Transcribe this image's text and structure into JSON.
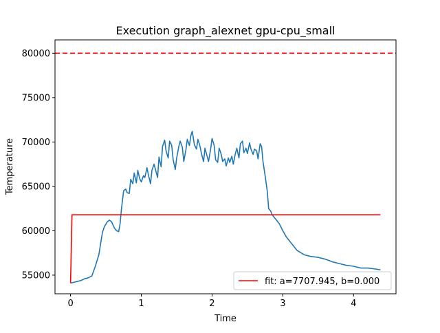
{
  "chart_data": {
    "type": "line",
    "title": "Execution graph_alexnet gpu-cpu_small",
    "xlabel": "Time",
    "ylabel": "Temperature",
    "xlim": [
      -0.22,
      4.6
    ],
    "ylim": [
      52900,
      81500
    ],
    "xticks": [
      0,
      1,
      2,
      3,
      4
    ],
    "yticks": [
      55000,
      60000,
      65000,
      70000,
      75000,
      80000
    ],
    "grid": false,
    "legend_position": "lower-right",
    "reference_line": {
      "y": 80000,
      "color": "#ff0000",
      "style": "dashed"
    },
    "series": [
      {
        "color": "#1f77b4",
        "x": [
          0.0,
          0.05,
          0.1,
          0.15,
          0.2,
          0.25,
          0.3,
          0.35,
          0.4,
          0.45,
          0.48,
          0.52,
          0.55,
          0.58,
          0.62,
          0.65,
          0.68,
          0.7,
          0.72,
          0.75,
          0.78,
          0.8,
          0.83,
          0.85,
          0.88,
          0.9,
          0.93,
          0.95,
          0.98,
          1.0,
          1.03,
          1.05,
          1.08,
          1.1,
          1.13,
          1.15,
          1.18,
          1.2,
          1.23,
          1.25,
          1.28,
          1.3,
          1.33,
          1.35,
          1.38,
          1.4,
          1.43,
          1.45,
          1.48,
          1.5,
          1.53,
          1.55,
          1.58,
          1.6,
          1.63,
          1.65,
          1.68,
          1.7,
          1.72,
          1.75,
          1.78,
          1.8,
          1.83,
          1.85,
          1.88,
          1.9,
          1.93,
          1.95,
          1.98,
          2.0,
          2.03,
          2.05,
          2.08,
          2.1,
          2.13,
          2.15,
          2.18,
          2.2,
          2.23,
          2.25,
          2.28,
          2.3,
          2.33,
          2.35,
          2.38,
          2.4,
          2.43,
          2.45,
          2.48,
          2.5,
          2.53,
          2.55,
          2.58,
          2.6,
          2.63,
          2.65,
          2.68,
          2.7,
          2.72,
          2.75,
          2.78,
          2.8,
          2.83,
          2.85,
          2.9,
          2.95,
          3.0,
          3.05,
          3.1,
          3.15,
          3.2,
          3.3,
          3.4,
          3.5,
          3.6,
          3.7,
          3.8,
          3.9,
          4.0,
          4.1,
          4.2,
          4.3,
          4.38
        ],
        "y": [
          54100,
          54200,
          54300,
          54400,
          54600,
          54700,
          54900,
          56000,
          57300,
          59800,
          60500,
          61000,
          61200,
          61000,
          60300,
          60000,
          59900,
          60800,
          62500,
          64500,
          64700,
          64300,
          64200,
          65800,
          65300,
          66500,
          65400,
          66800,
          65800,
          65500,
          66200,
          66000,
          67100,
          66300,
          65300,
          66800,
          67500,
          66900,
          66000,
          68300,
          67200,
          69500,
          70200,
          69000,
          68200,
          70100,
          69600,
          68000,
          66900,
          68200,
          69500,
          70100,
          69400,
          67800,
          69100,
          70300,
          69600,
          70700,
          71200,
          69700,
          69200,
          70300,
          69500,
          68700,
          67800,
          69300,
          68400,
          67800,
          69200,
          70400,
          69600,
          68000,
          67700,
          69300,
          68600,
          67800,
          68100,
          67300,
          68200,
          67700,
          68400,
          67500,
          68700,
          69300,
          68200,
          69800,
          70100,
          68800,
          69300,
          68700,
          69900,
          69200,
          68600,
          69200,
          69000,
          68100,
          69800,
          69500,
          67800,
          66200,
          64500,
          62500,
          62200,
          61800,
          61300,
          60800,
          60000,
          59300,
          58800,
          58300,
          57800,
          57300,
          57100,
          57000,
          56800,
          56500,
          56300,
          56100,
          56000,
          55800,
          55800,
          55700,
          55600
        ]
      },
      {
        "name": "fit: a=7707.945, b=0.000",
        "color": "#ff0000",
        "x": [
          0.0,
          0.02,
          0.1,
          1.0,
          2.0,
          3.0,
          4.0,
          4.38
        ],
        "y": [
          54100,
          61800,
          61800,
          61800,
          61800,
          61800,
          61800,
          61800
        ]
      }
    ]
  }
}
